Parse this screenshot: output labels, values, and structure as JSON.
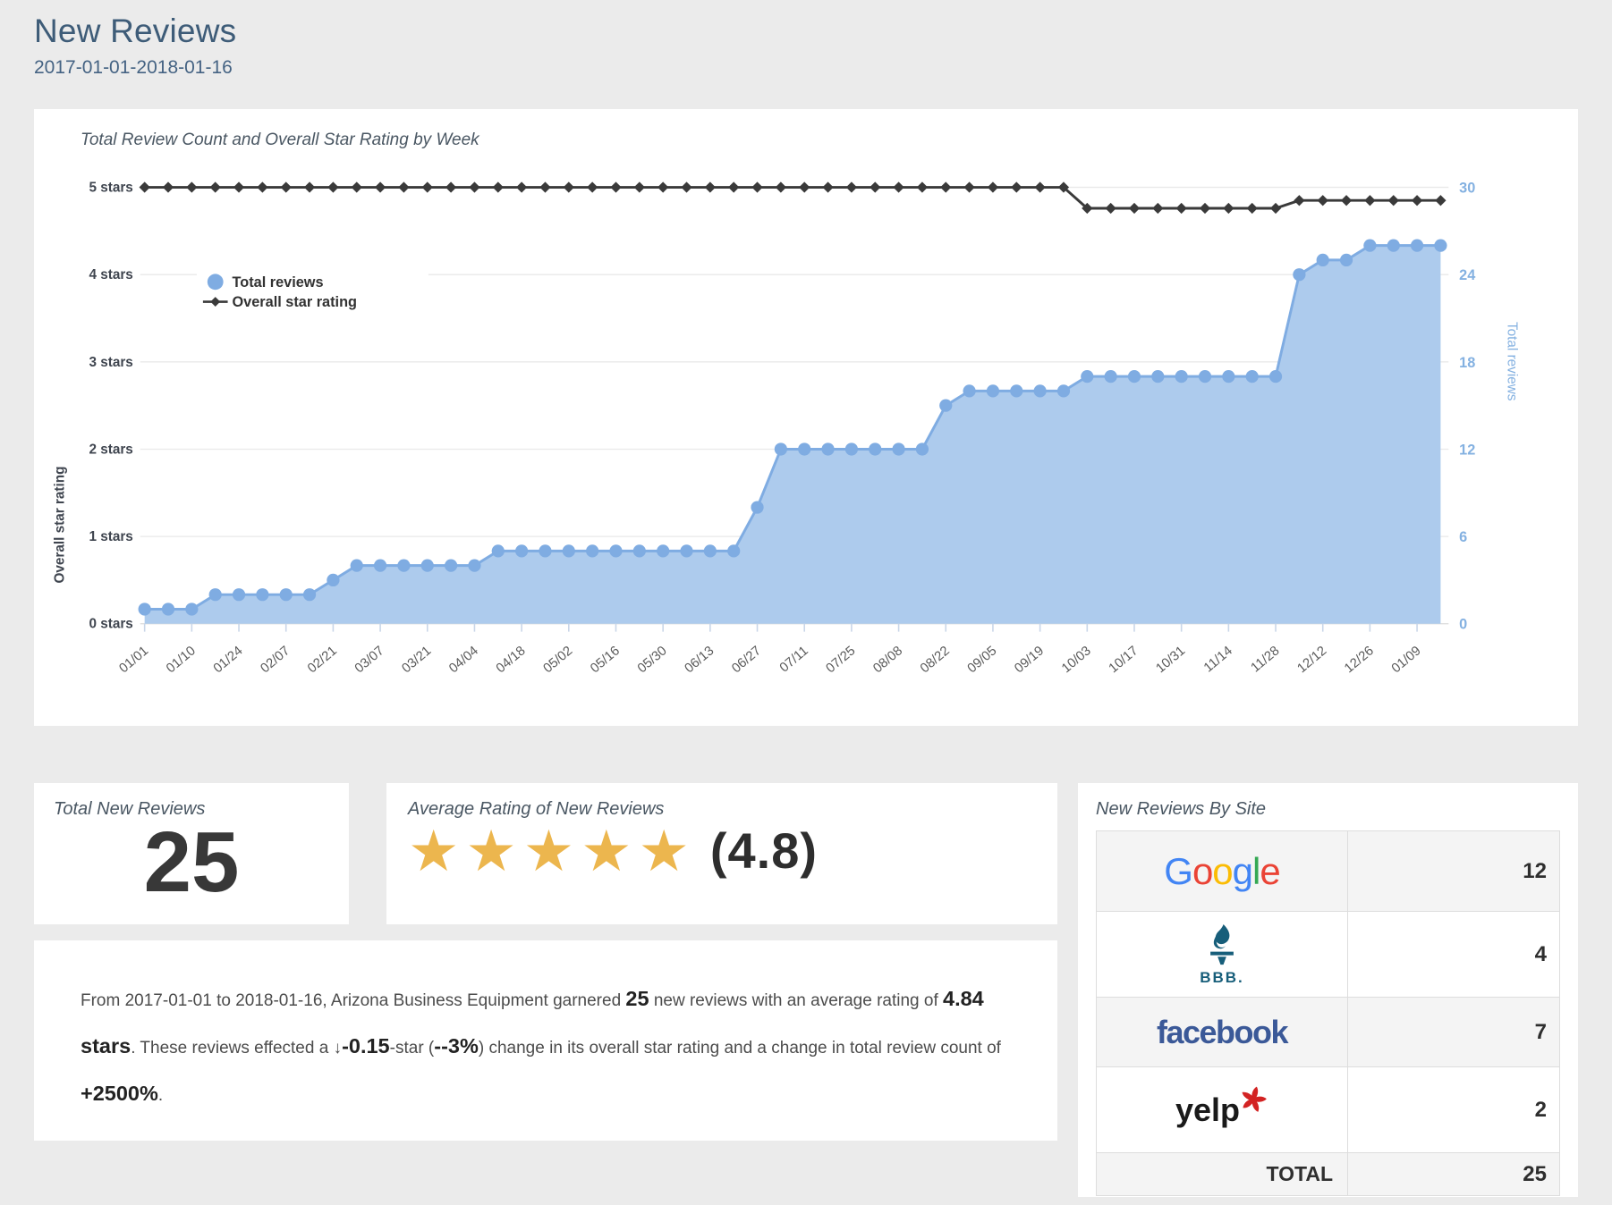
{
  "page": {
    "title": "New Reviews",
    "date_range": "2017-01-01-2018-01-16"
  },
  "chart": {
    "title": "Total Review Count and Overall Star Rating by Week",
    "legend": [
      {
        "label": "Total reviews",
        "marker": "circle",
        "color": "#7FACE2"
      },
      {
        "label": "Overall star rating",
        "marker": "diamond-line",
        "color": "#3A3A3A"
      }
    ],
    "colors": {
      "series_blue": "#7FACE2",
      "series_blue_fill": "#ADCBED",
      "series_black": "#3A3A3A",
      "right_axis_text": "#84B1E1",
      "left_axis_text": "#3F454F",
      "tick_label_text": "#5a5a5a",
      "grid": "#e9e9e9"
    }
  },
  "chart_data": {
    "type": "area",
    "title": "Total Review Count and Overall Star Rating by Week",
    "x": [
      "01/01",
      "01/03",
      "01/10",
      "01/17",
      "01/24",
      "01/31",
      "02/07",
      "02/14",
      "02/21",
      "02/28",
      "03/07",
      "03/14",
      "03/21",
      "03/28",
      "04/04",
      "04/11",
      "04/18",
      "04/25",
      "05/02",
      "05/09",
      "05/16",
      "05/23",
      "05/30",
      "06/06",
      "06/13",
      "06/20",
      "06/27",
      "07/04",
      "07/11",
      "07/18",
      "07/25",
      "08/01",
      "08/08",
      "08/15",
      "08/22",
      "08/29",
      "09/05",
      "09/12",
      "09/19",
      "09/26",
      "10/03",
      "10/10",
      "10/17",
      "10/24",
      "10/31",
      "11/07",
      "11/14",
      "11/21",
      "11/28",
      "12/05",
      "12/12",
      "12/19",
      "12/26",
      "01/02",
      "01/09",
      "01/16"
    ],
    "x_tick_labels": [
      "01/01",
      "01/10",
      "01/24",
      "02/07",
      "02/21",
      "03/07",
      "03/21",
      "04/04",
      "04/18",
      "05/02",
      "05/16",
      "05/30",
      "06/13",
      "06/27",
      "07/11",
      "07/25",
      "08/08",
      "08/22",
      "09/05",
      "09/19",
      "10/03",
      "10/17",
      "10/31",
      "11/14",
      "11/28",
      "12/12",
      "12/26",
      "01/09"
    ],
    "series": [
      {
        "name": "Total reviews",
        "type": "area",
        "axis": "right",
        "values": [
          1,
          1,
          1,
          2,
          2,
          2,
          2,
          2,
          3,
          4,
          4,
          4,
          4,
          4,
          4,
          5,
          5,
          5,
          5,
          5,
          5,
          5,
          5,
          5,
          5,
          5,
          8,
          12,
          12,
          12,
          12,
          12,
          12,
          12,
          15,
          16,
          16,
          16,
          16,
          16,
          17,
          17,
          17,
          17,
          17,
          17,
          17,
          17,
          17,
          24,
          25,
          25,
          26,
          26,
          26,
          26
        ]
      },
      {
        "name": "Overall star rating",
        "type": "line",
        "axis": "left",
        "values": [
          5,
          5,
          5,
          5,
          5,
          5,
          5,
          5,
          5,
          5,
          5,
          5,
          5,
          5,
          5,
          5,
          5,
          5,
          5,
          5,
          5,
          5,
          5,
          5,
          5,
          5,
          5,
          5,
          5,
          5,
          5,
          5,
          5,
          5,
          5,
          5,
          5,
          5,
          5,
          5,
          4.76,
          4.76,
          4.76,
          4.76,
          4.76,
          4.76,
          4.76,
          4.76,
          4.76,
          4.85,
          4.85,
          4.85,
          4.85,
          4.85,
          4.85,
          4.85
        ]
      }
    ],
    "left_axis": {
      "title": "Overall star rating",
      "tick_labels": [
        "0 stars",
        "1 stars",
        "2 stars",
        "3 stars",
        "4 stars",
        "5 stars"
      ],
      "range": [
        0,
        5
      ]
    },
    "right_axis": {
      "title": "Total reviews",
      "tick_labels": [
        "0",
        "6",
        "12",
        "18",
        "24",
        "30"
      ],
      "range": [
        0,
        30
      ]
    },
    "grid": "horizontal",
    "legend_position": "upper-left-inside"
  },
  "stats": {
    "total_label": "Total New Reviews",
    "total_value": "25",
    "avg_label": "Average Rating of New Reviews",
    "stars_count": 5,
    "star_glyph": "★",
    "star_color": "#ECB64E",
    "rating_display": "(4.8)"
  },
  "summary": {
    "parts": [
      {
        "text": "From 2017-01-01 to 2018-01-16, Arizona Business Equipment garnered ",
        "bold": false
      },
      {
        "text": "25",
        "bold": true
      },
      {
        "text": " new reviews with an average rating of ",
        "bold": false
      },
      {
        "text": "4.84 stars",
        "bold": true
      },
      {
        "text": ". These reviews effected a ↓",
        "bold": false
      },
      {
        "text": "-0.15",
        "bold": true
      },
      {
        "text": "-star (",
        "bold": false
      },
      {
        "text": "--3%",
        "bold": true
      },
      {
        "text": ") change in its overall star rating and a change in total review count of ",
        "bold": false
      },
      {
        "text": "+2500%",
        "bold": true
      },
      {
        "text": ".",
        "bold": false
      }
    ]
  },
  "by_site": {
    "title": "New Reviews By Site",
    "rows": [
      {
        "site": "Google",
        "logo": "google",
        "value": "12",
        "shaded": true
      },
      {
        "site": "BBB",
        "logo": "bbb",
        "value": "4",
        "shaded": false
      },
      {
        "site": "facebook",
        "logo": "facebook",
        "value": "7",
        "shaded": true
      },
      {
        "site": "Yelp",
        "logo": "yelp",
        "value": "2",
        "shaded": false
      }
    ],
    "total_label": "TOTAL",
    "total_value": "25",
    "logos": {
      "google_letters": [
        [
          "G",
          "#4285F4"
        ],
        [
          "o",
          "#EA4335"
        ],
        [
          "o",
          "#FBBC05"
        ],
        [
          "g",
          "#4285F4"
        ],
        [
          "l",
          "#34A853"
        ],
        [
          "e",
          "#EA4335"
        ]
      ],
      "bbb_text": "BBB.",
      "bbb_color": "#175E7A",
      "facebook_text": "facebook",
      "facebook_color": "#3B5998",
      "yelp_text": "yelp",
      "yelp_text_color": "#1a1a1a",
      "yelp_burst_color": "#D32323"
    }
  }
}
